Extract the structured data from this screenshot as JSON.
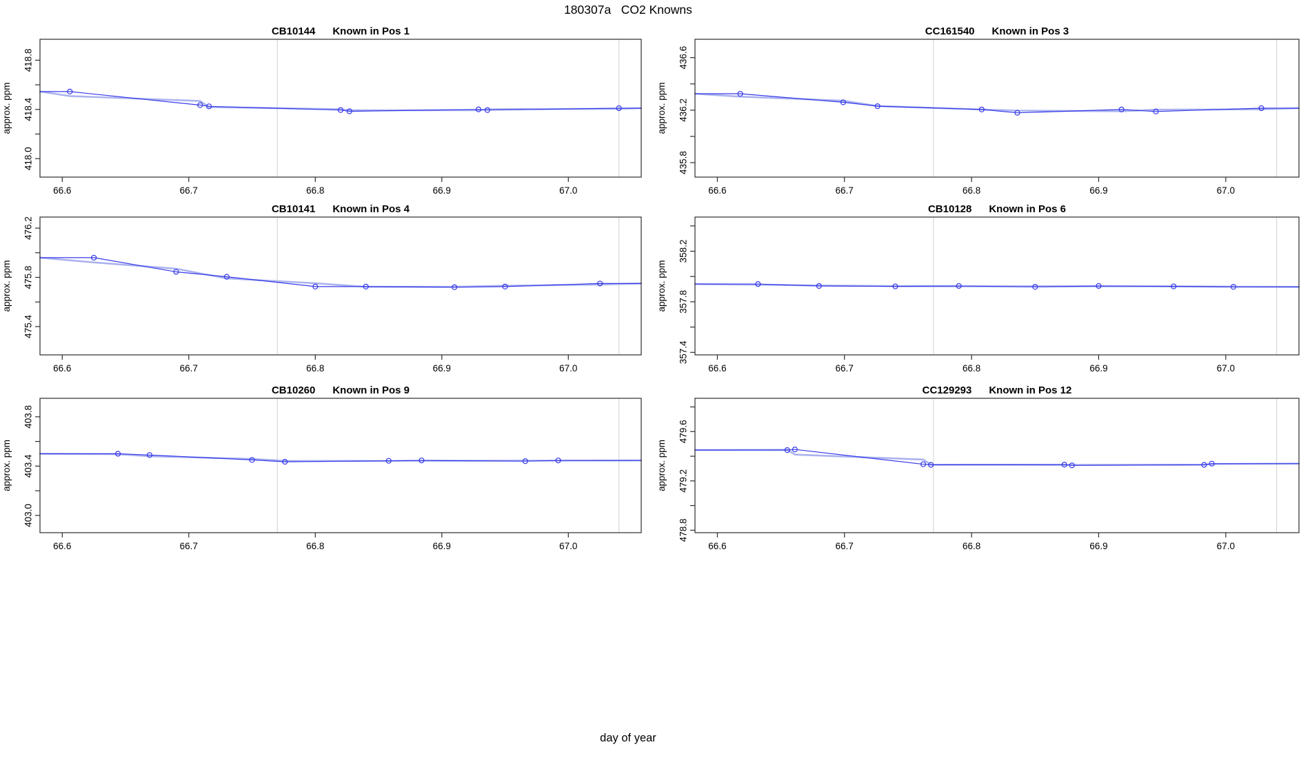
{
  "title": "180307a   CO2 Knowns",
  "outer_xlabel": "day of year",
  "colors": {
    "line_dark": "#3538e8",
    "line_pale": "#aab3ef",
    "marker": "#3538e8",
    "gridline": "#d8d8d8",
    "axis": "#2b2b2b",
    "text": "#000000",
    "background": "#ffffff"
  },
  "chart_data": {
    "type": "line",
    "title": "180307a   CO2 Knowns",
    "xlabel": "day of year",
    "ylabel": "approx. ppm",
    "grid": "vertical-reference-lines-only",
    "legend": "none",
    "xlim": [
      66.5824,
      67.0576
    ],
    "xticks": [
      66.6,
      66.7,
      66.8,
      66.9,
      67.0
    ],
    "vlines": [
      66.77,
      67.04
    ],
    "panels": [
      {
        "id": "CB10144",
        "pos_label": "Known in Pos 1",
        "ylim": [
          417.85,
          418.97
        ],
        "yticks_labeled": [
          418.0,
          418.4,
          418.8
        ],
        "yticks_minor": [
          418.2,
          418.6
        ],
        "x": [
          66.606,
          66.709,
          66.716,
          66.82,
          66.827,
          66.929,
          66.936,
          67.04
        ],
        "y": [
          418.545,
          418.435,
          418.425,
          418.395,
          418.385,
          418.4,
          418.395,
          418.41
        ]
      },
      {
        "id": "CC161540",
        "pos_label": "Known in Pos 3",
        "ylim": [
          435.69,
          436.74
        ],
        "yticks_labeled": [
          435.8,
          436.2,
          436.6
        ],
        "yticks_minor": [
          436.0,
          436.4
        ],
        "x": [
          66.618,
          66.699,
          66.726,
          66.808,
          66.836,
          66.918,
          66.945,
          67.028
        ],
        "y": [
          436.325,
          436.26,
          436.23,
          436.205,
          436.18,
          436.205,
          436.19,
          436.215
        ]
      },
      {
        "id": "CB10141",
        "pos_label": "Known in Pos 4",
        "ylim": [
          475.17,
          476.29
        ],
        "yticks_labeled": [
          475.4,
          475.8,
          476.2
        ],
        "yticks_minor": [
          475.6,
          476.0
        ],
        "x": [
          66.625,
          66.69,
          66.73,
          66.8,
          66.84,
          66.91,
          66.95,
          67.025
        ],
        "y": [
          475.96,
          475.845,
          475.805,
          475.725,
          475.725,
          475.72,
          475.725,
          475.75
        ]
      },
      {
        "id": "CB10128",
        "pos_label": "Known in Pos 6",
        "ylim": [
          357.38,
          358.47
        ],
        "yticks_labeled": [
          357.4,
          357.8,
          358.2
        ],
        "yticks_minor": [
          357.6,
          358.0,
          358.4
        ],
        "x": [
          66.632,
          66.68,
          66.74,
          66.79,
          66.85,
          66.9,
          66.959,
          67.006
        ],
        "y": [
          357.94,
          357.925,
          357.922,
          357.925,
          357.918,
          357.925,
          357.922,
          357.918
        ]
      },
      {
        "id": "CB10260",
        "pos_label": "Known in Pos 9",
        "ylim": [
          402.86,
          403.95
        ],
        "yticks_labeled": [
          403.0,
          403.4,
          403.8
        ],
        "yticks_minor": [
          403.2,
          403.6
        ],
        "x": [
          66.644,
          66.669,
          66.75,
          66.776,
          66.858,
          66.884,
          66.966,
          66.992
        ],
        "y": [
          403.5,
          403.49,
          403.45,
          403.435,
          403.443,
          403.446,
          403.44,
          403.446
        ]
      },
      {
        "id": "CC129293",
        "pos_label": "Known in Pos 12",
        "ylim": [
          478.78,
          479.87
        ],
        "yticks_labeled": [
          478.8,
          479.2,
          479.6
        ],
        "yticks_minor": [
          479.0,
          479.4,
          479.8
        ],
        "x": [
          66.655,
          66.661,
          66.762,
          66.768,
          66.873,
          66.879,
          66.983,
          66.989
        ],
        "y": [
          479.45,
          479.455,
          479.335,
          479.33,
          479.332,
          479.326,
          479.33,
          479.34
        ]
      }
    ]
  }
}
